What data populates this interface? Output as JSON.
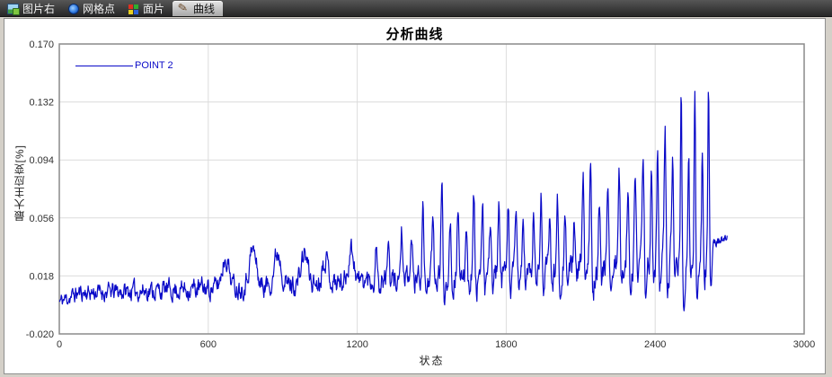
{
  "tabbar": {
    "tabs": [
      {
        "id": "image-right",
        "label": "图片右",
        "icon": "image-icon",
        "active": false
      },
      {
        "id": "grid-points",
        "label": "网格点",
        "icon": "gridpoint-icon",
        "active": false
      },
      {
        "id": "mesh",
        "label": "面片",
        "icon": "mesh-icon",
        "active": false
      },
      {
        "id": "curve",
        "label": "曲线",
        "icon": "pen-icon",
        "active": true
      }
    ]
  },
  "chart_data": {
    "type": "line",
    "title": "分析曲线",
    "xlabel": "状态",
    "ylabel": "最大主应变[%]",
    "xlim": [
      0,
      3000
    ],
    "ylim": [
      -0.02,
      0.17
    ],
    "xticks": [
      0,
      600,
      1200,
      1800,
      2400,
      3000
    ],
    "yticks": [
      0.17,
      0.132,
      0.094,
      0.056,
      0.018,
      -0.02
    ],
    "grid": true,
    "frame_color": "#8a8a8a",
    "grid_color": "#dcdcdc",
    "tick_color": "#303030",
    "legend": {
      "position": "top-left",
      "entries": [
        {
          "label": "POINT 2",
          "color": "#0a0ac8"
        }
      ]
    },
    "series": [
      {
        "name": "POINT 2",
        "color": "#0a0ac8",
        "x_end": 2690,
        "sample_step": 2,
        "noise_seed": 11,
        "baseline": [
          [
            0,
            0.001
          ],
          [
            80,
            0.007
          ],
          [
            300,
            0.008
          ],
          [
            600,
            0.01
          ],
          [
            900,
            0.012
          ],
          [
            1250,
            0.015
          ],
          [
            1500,
            0.018
          ],
          [
            1800,
            0.02
          ],
          [
            2100,
            0.023
          ],
          [
            2400,
            0.027
          ],
          [
            2600,
            0.031
          ],
          [
            2620,
            0.04
          ],
          [
            2690,
            0.042
          ]
        ],
        "noise_amp": [
          [
            0,
            0.007
          ],
          [
            600,
            0.009
          ],
          [
            1200,
            0.01
          ],
          [
            1800,
            0.011
          ],
          [
            2400,
            0.012
          ],
          [
            2610,
            0.012
          ],
          [
            2625,
            0.004
          ],
          [
            2690,
            0.004
          ]
        ],
        "bumps": [
          [
            670,
            0.02,
            20
          ],
          [
            779,
            0.024,
            20
          ],
          [
            880,
            0.022,
            20
          ],
          [
            988,
            0.02,
            18
          ],
          [
            1071,
            0.018,
            16
          ],
          [
            1176,
            0.022,
            16
          ]
        ],
        "spikes": [
          [
            1278,
            0.028,
            5
          ],
          [
            1325,
            0.03,
            5
          ],
          [
            1379,
            0.035,
            5
          ],
          [
            1420,
            0.03,
            5
          ],
          [
            1465,
            0.048,
            5
          ],
          [
            1505,
            0.038,
            5
          ],
          [
            1541,
            0.06,
            5
          ],
          [
            1575,
            0.038,
            5
          ],
          [
            1606,
            0.048,
            5
          ],
          [
            1640,
            0.038,
            5
          ],
          [
            1670,
            0.054,
            5
          ],
          [
            1705,
            0.04,
            5
          ],
          [
            1737,
            0.04,
            5
          ],
          [
            1770,
            0.043,
            5
          ],
          [
            1808,
            0.046,
            5
          ],
          [
            1840,
            0.04,
            5
          ],
          [
            1869,
            0.036,
            5
          ],
          [
            1911,
            0.038,
            5
          ],
          [
            1941,
            0.058,
            5
          ],
          [
            1975,
            0.038,
            5
          ],
          [
            2007,
            0.046,
            5
          ],
          [
            2037,
            0.042,
            5
          ],
          [
            2074,
            0.036,
            5
          ],
          [
            2110,
            0.063,
            5
          ],
          [
            2140,
            0.078,
            5
          ],
          [
            2175,
            0.048,
            5
          ],
          [
            2210,
            0.058,
            5
          ],
          [
            2255,
            0.063,
            5
          ],
          [
            2290,
            0.052,
            5
          ],
          [
            2320,
            0.058,
            5
          ],
          [
            2352,
            0.076,
            5
          ],
          [
            2385,
            0.058,
            5
          ],
          [
            2410,
            0.078,
            5
          ],
          [
            2440,
            0.086,
            5
          ],
          [
            2470,
            0.068,
            5
          ],
          [
            2505,
            0.121,
            4
          ],
          [
            2535,
            0.068,
            4
          ],
          [
            2560,
            0.116,
            4
          ],
          [
            2590,
            0.072,
            4
          ],
          [
            2615,
            0.112,
            4
          ]
        ]
      }
    ]
  }
}
